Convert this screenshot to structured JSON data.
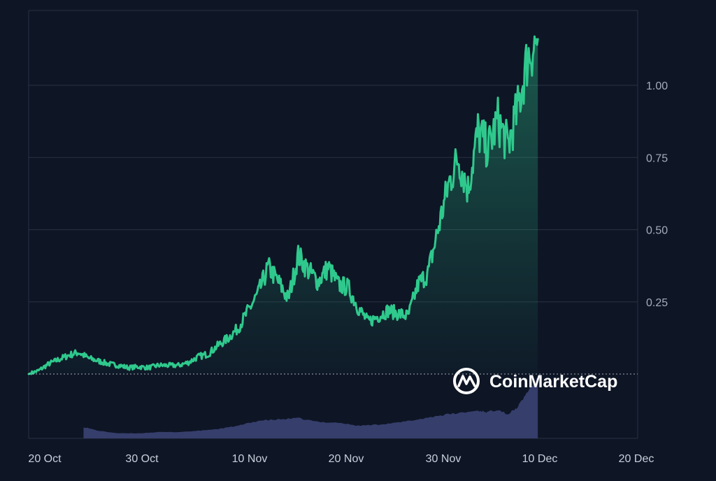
{
  "colors": {
    "background": "#0e1525",
    "line": "#2fc98d",
    "grid": "#2a3142",
    "volume": "#363e6c",
    "baseline": "#c9cfdb"
  },
  "watermark": {
    "text": "CoinMarketCap",
    "icon": "coinmarketcap-logo-icon"
  },
  "chart_data": {
    "type": "line",
    "title": "",
    "xlabel": "",
    "ylabel": "",
    "y_axis_position": "right",
    "grid": "horizontal",
    "ylim": [
      0,
      1.2
    ],
    "y_ticks": [
      "1.00",
      "0.75",
      "0.50",
      "0.25"
    ],
    "y_tick_values": [
      1.0,
      0.75,
      0.5,
      0.25
    ],
    "x_ticks": [
      "20 Oct",
      "30 Oct",
      "10 Nov",
      "20 Nov",
      "30 Nov",
      "10 Dec",
      "20 Dec"
    ],
    "baseline_value": 0,
    "series": [
      {
        "values": [
          [
            0,
            0.0
          ],
          [
            1,
            0.012
          ],
          [
            2,
            0.035
          ],
          [
            3,
            0.05
          ],
          [
            4,
            0.065
          ],
          [
            5,
            0.075
          ],
          [
            6,
            0.055
          ],
          [
            7,
            0.045
          ],
          [
            8,
            0.035
          ],
          [
            9,
            0.03
          ],
          [
            10,
            0.022
          ],
          [
            11,
            0.025
          ],
          [
            12,
            0.022
          ],
          [
            13,
            0.03
          ],
          [
            14,
            0.03
          ],
          [
            15,
            0.03
          ],
          [
            16,
            0.04
          ],
          [
            17,
            0.06
          ],
          [
            18,
            0.07
          ],
          [
            19,
            0.1
          ],
          [
            20,
            0.125
          ],
          [
            21,
            0.16
          ],
          [
            22,
            0.22
          ],
          [
            23,
            0.28
          ],
          [
            24,
            0.37
          ],
          [
            25,
            0.32
          ],
          [
            26,
            0.26
          ],
          [
            27,
            0.41
          ],
          [
            28,
            0.36
          ],
          [
            29,
            0.32
          ],
          [
            30,
            0.37
          ],
          [
            31,
            0.31
          ],
          [
            32,
            0.3
          ],
          [
            33,
            0.23
          ],
          [
            34,
            0.18
          ],
          [
            35,
            0.2
          ],
          [
            36,
            0.22
          ],
          [
            37,
            0.21
          ],
          [
            38,
            0.2
          ],
          [
            39,
            0.31
          ],
          [
            40,
            0.35
          ],
          [
            41,
            0.5
          ],
          [
            42,
            0.65
          ],
          [
            43,
            0.75
          ],
          [
            44,
            0.64
          ],
          [
            45,
            0.84
          ],
          [
            46,
            0.78
          ],
          [
            47,
            0.88
          ],
          [
            48,
            0.79
          ],
          [
            49,
            0.92
          ],
          [
            50,
            1.1
          ],
          [
            51,
            1.16
          ]
        ]
      }
    ],
    "volume": {
      "start_day": 5.5,
      "values": [
        [
          5.5,
          0.18
        ],
        [
          7,
          0.12
        ],
        [
          9,
          0.08
        ],
        [
          11,
          0.08
        ],
        [
          13,
          0.1
        ],
        [
          15,
          0.1
        ],
        [
          17,
          0.12
        ],
        [
          19,
          0.15
        ],
        [
          21,
          0.2
        ],
        [
          23,
          0.28
        ],
        [
          25,
          0.3
        ],
        [
          27,
          0.32
        ],
        [
          29,
          0.26
        ],
        [
          31,
          0.25
        ],
        [
          33,
          0.2
        ],
        [
          35,
          0.22
        ],
        [
          37,
          0.25
        ],
        [
          39,
          0.3
        ],
        [
          41,
          0.36
        ],
        [
          43,
          0.4
        ],
        [
          45,
          0.44
        ],
        [
          46,
          0.42
        ],
        [
          47,
          0.46
        ],
        [
          48,
          0.38
        ],
        [
          49,
          0.5
        ],
        [
          50,
          0.75
        ],
        [
          51,
          0.95
        ]
      ]
    }
  }
}
